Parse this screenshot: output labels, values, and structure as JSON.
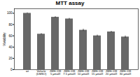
{
  "chart_data": {
    "type": "bar",
    "title": "MTT assay",
    "ylabel": "%viability",
    "categories": [
      "wt",
      "Vehicle\n(DMSO)",
      "JWH-133\n5 μmol/l",
      "JWH-133\n7.5 μmol/l",
      "JWH-133\n10 μmol/l",
      "JWH-133\n15 μmol/l",
      "JWH-133\n20 μmol/l",
      "JWH-133\n30 μmol/l"
    ],
    "values": [
      100,
      63,
      93,
      90,
      70,
      60,
      67,
      58
    ],
    "errors": [
      0.8,
      1.2,
      1.2,
      1.2,
      2.0,
      1.5,
      1.2,
      2.0
    ],
    "color": "#686868",
    "ylim": [
      0,
      108
    ],
    "yticks": [
      0,
      20,
      40,
      60,
      80,
      100
    ],
    "grid": false
  }
}
